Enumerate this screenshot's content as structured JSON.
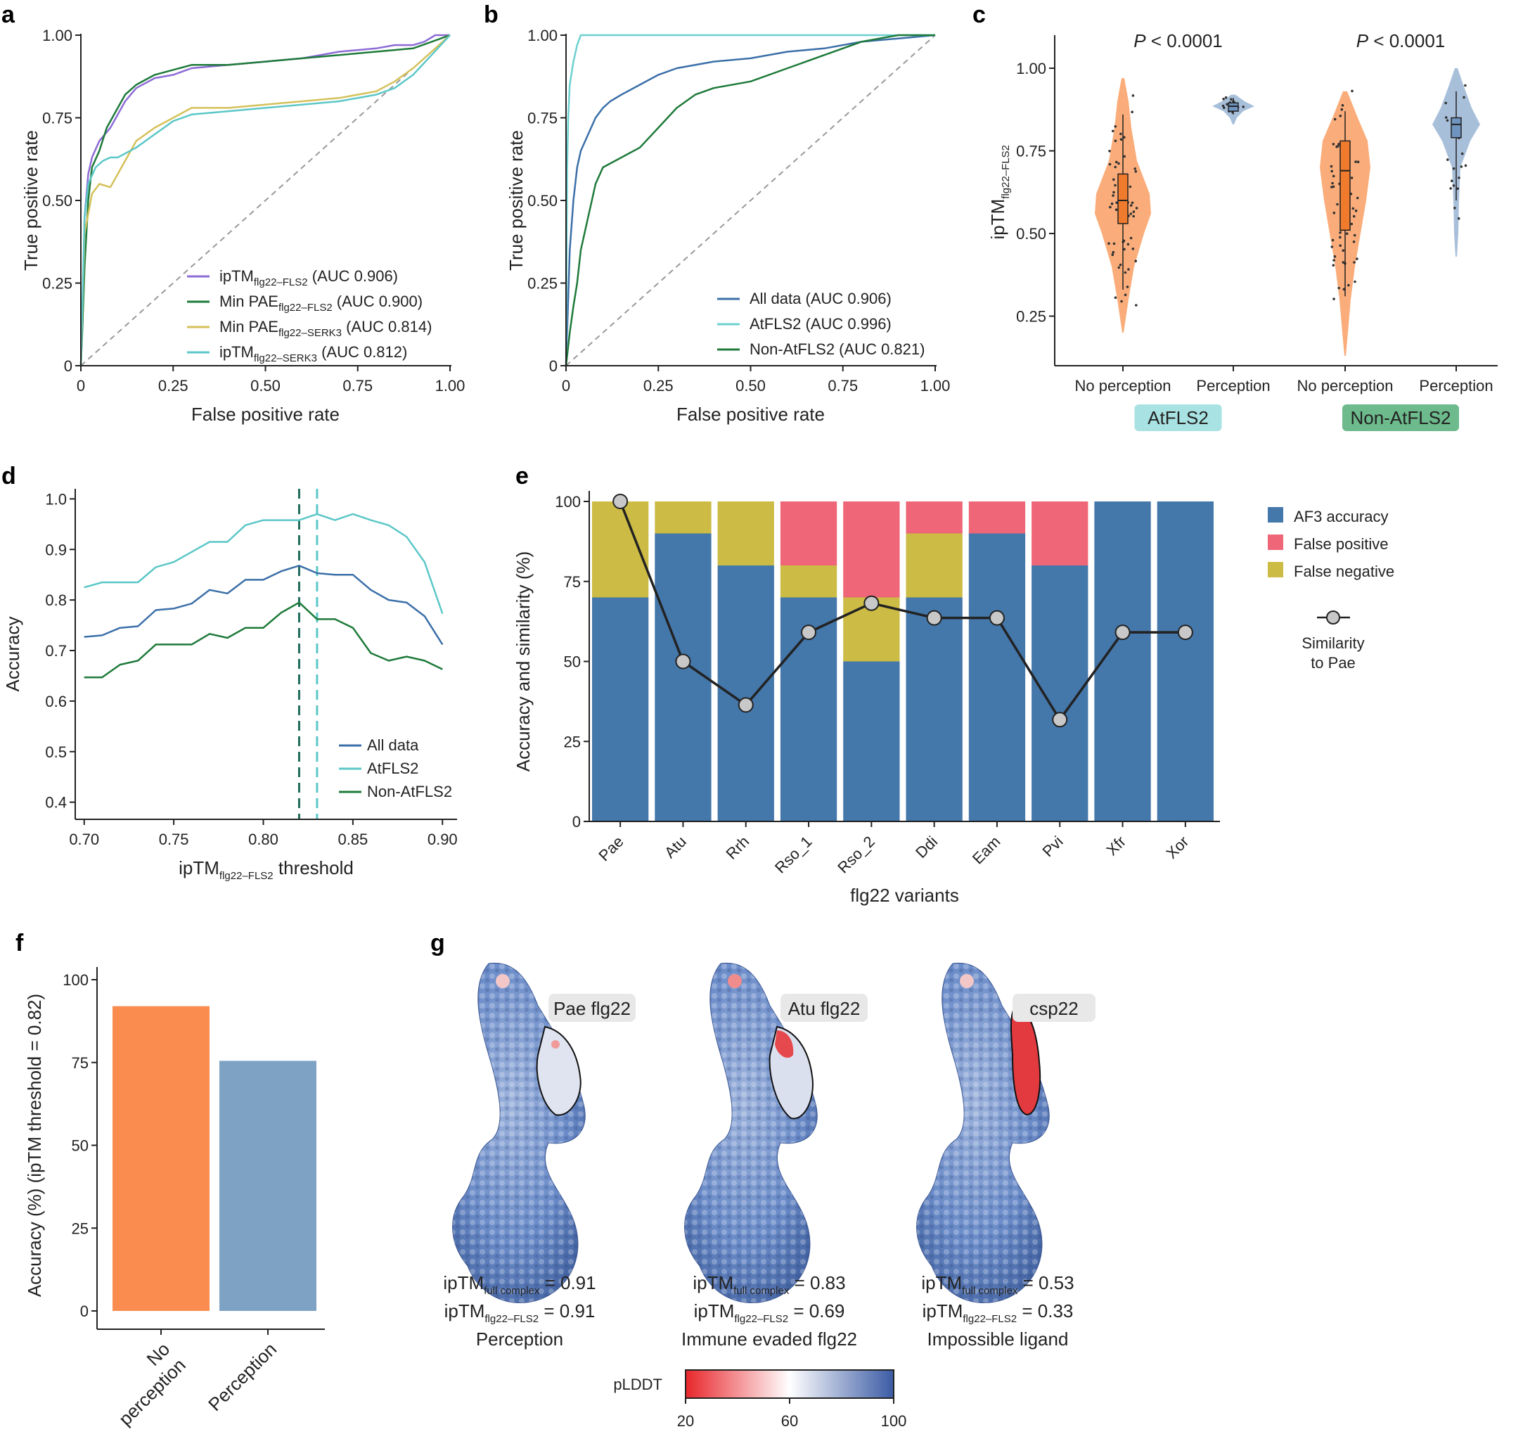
{
  "figure": {
    "panels": [
      "a",
      "b",
      "c",
      "d",
      "e",
      "f",
      "g"
    ]
  },
  "chart_data": [
    {
      "id": "a",
      "type": "line",
      "xlabel": "False positive rate",
      "ylabel": "True positive rate",
      "xlim": [
        0,
        1
      ],
      "ylim": [
        0,
        1
      ],
      "xticks": [
        "0",
        "0.25",
        "0.50",
        "0.75",
        "1.00"
      ],
      "yticks": [
        "0",
        "0.25",
        "0.50",
        "0.75",
        "1.00"
      ],
      "diagonal": true,
      "series": [
        {
          "name": "ipTM",
          "sub": "flg22–FLS2",
          "auc": "(AUC 0.906)",
          "color": "#8c6bd6",
          "x": [
            0,
            0.005,
            0.01,
            0.02,
            0.03,
            0.05,
            0.08,
            0.1,
            0.12,
            0.15,
            0.2,
            0.25,
            0.3,
            0.4,
            0.5,
            0.6,
            0.7,
            0.8,
            0.85,
            0.9,
            0.93,
            0.96,
            1.0
          ],
          "y": [
            0,
            0.15,
            0.45,
            0.58,
            0.63,
            0.68,
            0.72,
            0.76,
            0.8,
            0.84,
            0.87,
            0.88,
            0.9,
            0.91,
            0.92,
            0.93,
            0.95,
            0.96,
            0.97,
            0.97,
            0.98,
            1.0,
            1.0
          ]
        },
        {
          "name": "Min PAE",
          "sub": "flg22–FLS2",
          "auc": "(AUC 0.900)",
          "color": "#1e7a3a",
          "x": [
            0,
            0.003,
            0.01,
            0.02,
            0.03,
            0.05,
            0.07,
            0.1,
            0.12,
            0.15,
            0.2,
            0.3,
            0.4,
            0.5,
            0.6,
            0.7,
            0.8,
            0.9,
            0.95,
            1.0
          ],
          "y": [
            0,
            0.08,
            0.3,
            0.5,
            0.6,
            0.65,
            0.72,
            0.78,
            0.82,
            0.85,
            0.88,
            0.91,
            0.91,
            0.92,
            0.93,
            0.94,
            0.95,
            0.96,
            0.98,
            1.0
          ]
        },
        {
          "name": "Min PAE",
          "sub": "flg22–SERK3",
          "auc": "(AUC 0.814)",
          "color": "#d4c15a",
          "x": [
            0,
            0.01,
            0.03,
            0.05,
            0.08,
            0.1,
            0.12,
            0.15,
            0.2,
            0.25,
            0.3,
            0.4,
            0.5,
            0.6,
            0.7,
            0.8,
            0.85,
            0.9,
            0.95,
            1.0
          ],
          "y": [
            0,
            0.4,
            0.52,
            0.55,
            0.54,
            0.58,
            0.62,
            0.68,
            0.72,
            0.75,
            0.78,
            0.78,
            0.79,
            0.8,
            0.81,
            0.83,
            0.86,
            0.9,
            0.95,
            1.0
          ]
        },
        {
          "name": "ipTM",
          "sub": "flg22–SERK3",
          "auc": "(AUC 0.812)",
          "color": "#5cc7c7",
          "x": [
            0,
            0.01,
            0.02,
            0.04,
            0.06,
            0.08,
            0.1,
            0.15,
            0.2,
            0.25,
            0.3,
            0.4,
            0.5,
            0.6,
            0.7,
            0.8,
            0.85,
            0.9,
            0.95,
            1.0
          ],
          "y": [
            0,
            0.45,
            0.55,
            0.6,
            0.62,
            0.63,
            0.63,
            0.66,
            0.7,
            0.74,
            0.76,
            0.77,
            0.78,
            0.79,
            0.8,
            0.82,
            0.84,
            0.88,
            0.94,
            1.0
          ]
        }
      ]
    },
    {
      "id": "b",
      "type": "line",
      "xlabel": "False positive rate",
      "ylabel": "True positive rate",
      "xlim": [
        0,
        1
      ],
      "ylim": [
        0,
        1
      ],
      "xticks": [
        "0",
        "0.25",
        "0.50",
        "0.75",
        "1.00"
      ],
      "yticks": [
        "0",
        "0.25",
        "0.50",
        "0.75",
        "1.00"
      ],
      "diagonal": true,
      "series": [
        {
          "name": "All data",
          "sub": "",
          "auc": "(AUC 0.906)",
          "color": "#3b6fa8",
          "x": [
            0,
            0.01,
            0.02,
            0.03,
            0.04,
            0.06,
            0.08,
            0.1,
            0.12,
            0.15,
            0.2,
            0.25,
            0.3,
            0.4,
            0.5,
            0.6,
            0.7,
            0.8,
            0.9,
            1.0
          ],
          "y": [
            0,
            0.35,
            0.5,
            0.6,
            0.65,
            0.7,
            0.75,
            0.78,
            0.8,
            0.82,
            0.85,
            0.88,
            0.9,
            0.92,
            0.93,
            0.95,
            0.96,
            0.98,
            0.99,
            1.0
          ]
        },
        {
          "name": "AtFLS2",
          "sub": "",
          "auc": "(AUC 0.996)",
          "color": "#6cd0d0",
          "x": [
            0,
            0.003,
            0.006,
            0.01,
            0.02,
            0.03,
            0.04,
            0.05,
            0.1,
            0.5,
            1.0
          ],
          "y": [
            0,
            0.6,
            0.75,
            0.85,
            0.92,
            0.97,
            1.0,
            1.0,
            1.0,
            1.0,
            1.0
          ]
        },
        {
          "name": "Non-AtFLS2",
          "sub": "",
          "auc": "(AUC 0.821)",
          "color": "#1e7a3a",
          "x": [
            0,
            0.01,
            0.02,
            0.03,
            0.04,
            0.06,
            0.08,
            0.1,
            0.15,
            0.2,
            0.25,
            0.3,
            0.35,
            0.4,
            0.5,
            0.6,
            0.7,
            0.75,
            0.8,
            0.9,
            1.0
          ],
          "y": [
            0,
            0.1,
            0.18,
            0.25,
            0.35,
            0.45,
            0.55,
            0.6,
            0.63,
            0.66,
            0.72,
            0.78,
            0.82,
            0.84,
            0.86,
            0.9,
            0.94,
            0.96,
            0.98,
            1.0,
            1.0
          ]
        }
      ]
    },
    {
      "id": "c",
      "type": "violin",
      "ylabel": "ipTM",
      "ylabel_sub": "flg22–FLS2",
      "ylim": [
        0.1,
        1.1
      ],
      "yticks": [
        "0.25",
        "0.50",
        "0.75",
        "1.00"
      ],
      "categories": [
        "No perception",
        "Perception",
        "No perception",
        "Perception"
      ],
      "groups": [
        {
          "label": "AtFLS2",
          "color": "#a9e2e2"
        },
        {
          "label": "Non-AtFLS2",
          "color": "#6dba8c"
        }
      ],
      "pvalues": [
        "P < 0.0001",
        "P < 0.0001"
      ],
      "boxes": [
        {
          "q1": 0.53,
          "median": 0.6,
          "q3": 0.68,
          "wlo": 0.33,
          "whi": 0.86,
          "color": "#f07b2c"
        },
        {
          "q1": 0.87,
          "median": 0.885,
          "q3": 0.895,
          "wlo": 0.86,
          "whi": 0.91,
          "color": "#6f94c0"
        },
        {
          "q1": 0.51,
          "median": 0.69,
          "q3": 0.78,
          "wlo": 0.31,
          "whi": 0.87,
          "color": "#f07b2c"
        },
        {
          "q1": 0.79,
          "median": 0.83,
          "q3": 0.85,
          "wlo": 0.6,
          "whi": 0.93,
          "color": "#6f94c0"
        }
      ]
    },
    {
      "id": "d",
      "type": "line",
      "xlabel": "ipTM",
      "xlabel_sub": "flg22–FLS2",
      "xlabel_suffix": " threshold",
      "ylabel": "Accuracy",
      "xlim": [
        0.7,
        0.9
      ],
      "ylim": [
        0.38,
        1.02
      ],
      "xticks": [
        "0.70",
        "0.75",
        "0.80",
        "0.85",
        "0.90"
      ],
      "yticks": [
        "0.4",
        "0.5",
        "0.6",
        "0.7",
        "0.8",
        "0.9",
        "1.0"
      ],
      "vlines": [
        {
          "x": 0.82,
          "color": "#1e6b5a"
        },
        {
          "x": 0.83,
          "color": "#5cc7c7"
        }
      ],
      "x": [
        0.7,
        0.71,
        0.72,
        0.73,
        0.74,
        0.75,
        0.76,
        0.77,
        0.78,
        0.79,
        0.8,
        0.81,
        0.82,
        0.83,
        0.84,
        0.85,
        0.86,
        0.87,
        0.88,
        0.89,
        0.9
      ],
      "series": [
        {
          "name": "All data",
          "color": "#3b6fa8",
          "values": [
            0.727,
            0.73,
            0.745,
            0.748,
            0.78,
            0.783,
            0.793,
            0.82,
            0.813,
            0.84,
            0.84,
            0.857,
            0.868,
            0.853,
            0.85,
            0.85,
            0.82,
            0.8,
            0.795,
            0.768,
            0.712
          ]
        },
        {
          "name": "AtFLS2",
          "color": "#5cc7c7",
          "values": [
            0.825,
            0.835,
            0.835,
            0.835,
            0.865,
            0.875,
            0.895,
            0.915,
            0.915,
            0.948,
            0.958,
            0.958,
            0.958,
            0.97,
            0.958,
            0.97,
            0.958,
            0.948,
            0.925,
            0.875,
            0.773
          ]
        },
        {
          "name": "Non-AtFLS2",
          "color": "#1e7a3a",
          "values": [
            0.647,
            0.647,
            0.672,
            0.68,
            0.712,
            0.712,
            0.712,
            0.733,
            0.725,
            0.745,
            0.745,
            0.775,
            0.795,
            0.762,
            0.762,
            0.745,
            0.695,
            0.68,
            0.688,
            0.68,
            0.663
          ]
        }
      ]
    },
    {
      "id": "e",
      "type": "stacked-bar",
      "xlabel": "flg22 variants",
      "ylabel": "Accuracy and similarity (%)",
      "ylim": [
        0,
        100
      ],
      "yticks": [
        "0",
        "25",
        "50",
        "75",
        "100"
      ],
      "categories": [
        "Pae",
        "Atu",
        "Rrh",
        "Rso_1",
        "Rso_2",
        "Ddi",
        "Eam",
        "Pvi",
        "Xfr",
        "Xor"
      ],
      "series": [
        {
          "name": "AF3 accuracy",
          "color": "#4477aa",
          "values": [
            70,
            90,
            80,
            70,
            50,
            70,
            90,
            80,
            100,
            100
          ]
        },
        {
          "name": "False positive",
          "color": "#ee6677",
          "values": [
            0,
            0,
            0,
            20,
            30,
            10,
            10,
            20,
            0,
            0
          ]
        },
        {
          "name": "False negative",
          "color": "#ccbb44",
          "values": [
            30,
            10,
            20,
            10,
            20,
            20,
            0,
            0,
            0,
            0
          ]
        }
      ],
      "stack_order": [
        "AF3 accuracy",
        "False negative",
        "False positive"
      ],
      "similarity": {
        "name_line1": "Similarity",
        "name_line2": "to Pae",
        "values": [
          100,
          50,
          36.4,
          59.1,
          68.2,
          63.6,
          63.6,
          31.8,
          59.1,
          59.1
        ]
      }
    },
    {
      "id": "f",
      "type": "bar",
      "ylabel": "Accuracy (%) (ipTM threshold = 0.82)",
      "ylim": [
        0,
        100
      ],
      "yticks": [
        "0",
        "25",
        "50",
        "75",
        "100"
      ],
      "categories": [
        "No perception",
        "Perception"
      ],
      "category_lines": [
        [
          "No",
          "perception"
        ],
        [
          "Perception"
        ]
      ],
      "values": [
        92,
        75.5
      ],
      "colors": [
        "#f98c4e",
        "#7da2c4"
      ]
    }
  ],
  "panel_g": {
    "structures": [
      {
        "label": "Pae flg22",
        "full": "0.91",
        "flg": "0.91",
        "caption": "Perception"
      },
      {
        "label": "Atu flg22",
        "full": "0.83",
        "flg": "0.69",
        "caption": "Immune evaded flg22"
      },
      {
        "label": "csp22",
        "full": "0.53",
        "flg": "0.33",
        "caption": "Impossible ligand"
      }
    ],
    "iptm": "ipTM",
    "full_sub": "full complex",
    "flg_sub": "flg22–FLS2",
    "eq": " = ",
    "colorbar": {
      "label": "pLDDT",
      "ticks": [
        "20",
        "60",
        "100"
      ],
      "stops": [
        "#e8262b",
        "#ffffff",
        "#3b5ba5"
      ]
    }
  }
}
